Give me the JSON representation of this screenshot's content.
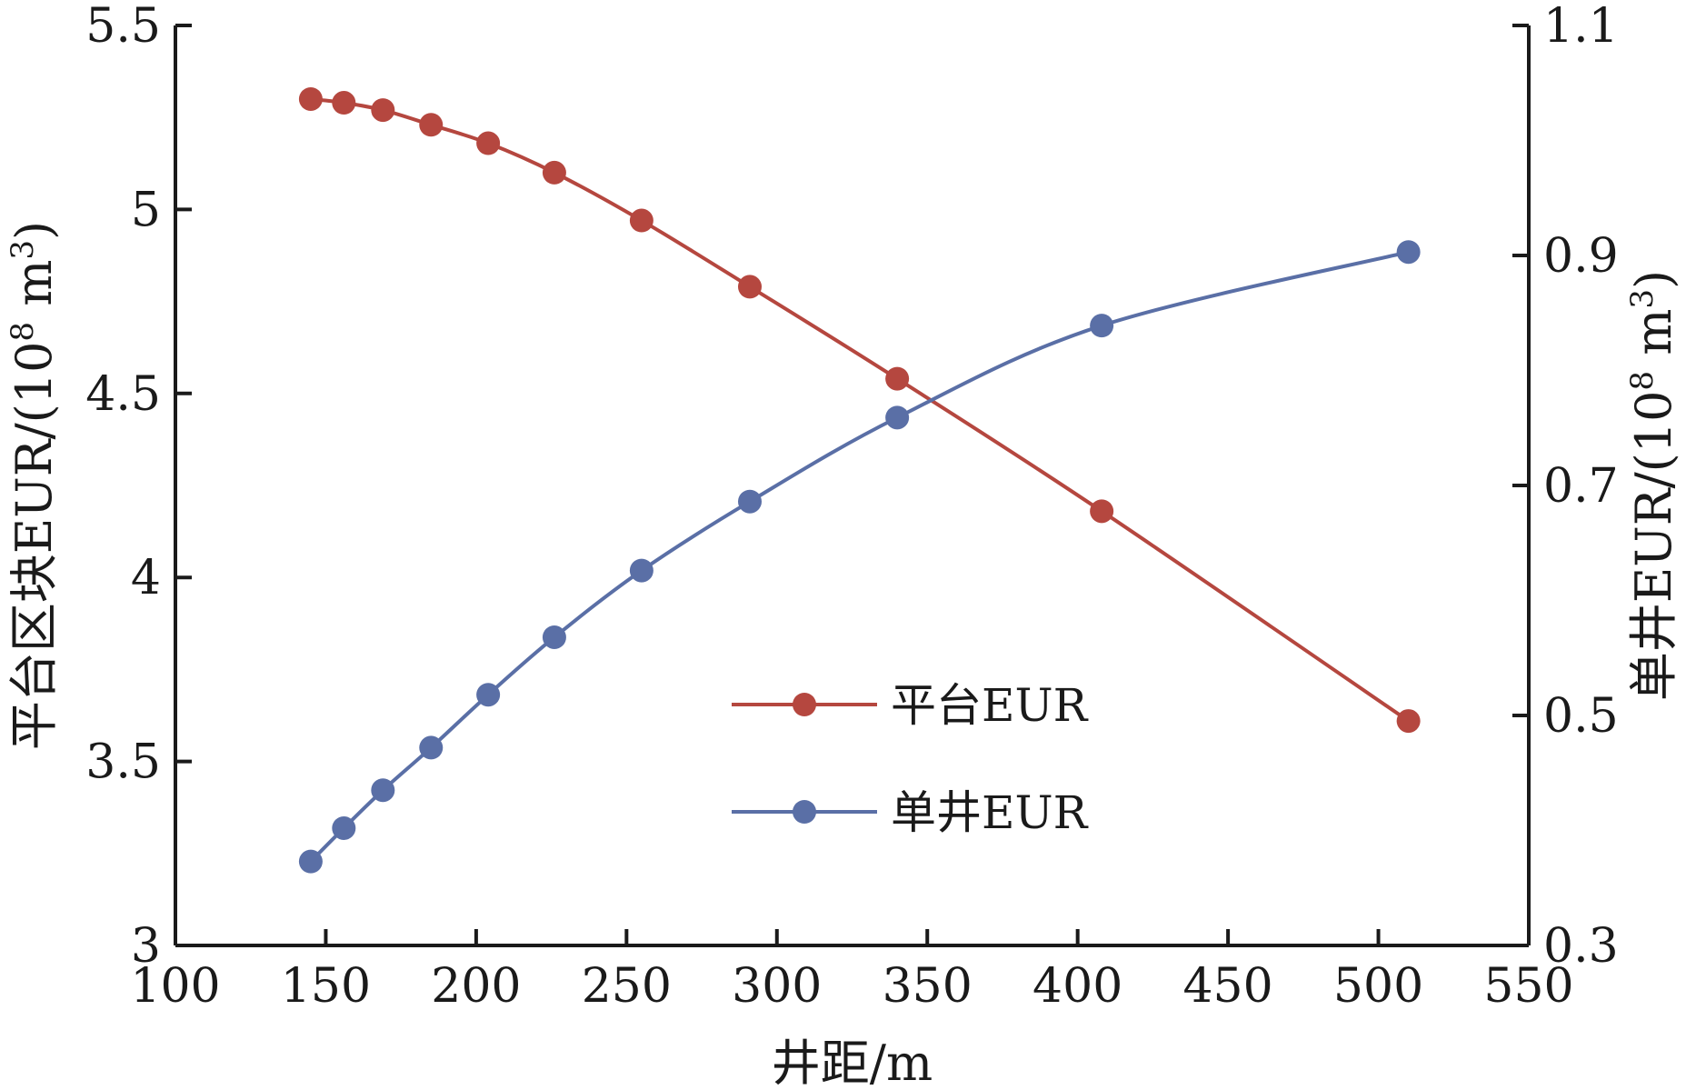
{
  "chart_data": {
    "type": "line",
    "x_axis": {
      "label": "井距/m",
      "range": [
        100,
        550
      ],
      "ticks": [
        100,
        150,
        200,
        250,
        300,
        350,
        400,
        450,
        500,
        550
      ],
      "tick_labels": [
        "100",
        "150",
        "200",
        "250",
        "300",
        "350",
        "400",
        "450",
        "500",
        "550"
      ]
    },
    "y_axis_left": {
      "label_main": "平台区块EUR/(10",
      "label_sup": "8",
      "label_tail": " m",
      "label_sup2": "3",
      "label_close": ")",
      "range": [
        3,
        5.5
      ],
      "ticks": [
        3,
        3.5,
        4,
        4.5,
        5,
        5.5
      ],
      "tick_labels": [
        "3",
        "3.5",
        "4",
        "4.5",
        "5",
        "5.5"
      ]
    },
    "y_axis_right": {
      "label_main": "单井EUR/(10",
      "label_sup": "8",
      "label_tail": " m",
      "label_sup2": "3",
      "label_close": ")",
      "range": [
        0.3,
        1.1
      ],
      "ticks": [
        0.3,
        0.5,
        0.7,
        0.9,
        1.1
      ],
      "tick_labels": [
        "0.3",
        "0.5",
        "0.7",
        "0.9",
        "1.1"
      ]
    },
    "series": [
      {
        "name": "平台EUR",
        "axis": "left",
        "color": "#b5473f",
        "x": [
          145,
          156,
          169,
          185,
          204,
          226,
          255,
          291,
          340,
          408,
          510
        ],
        "y": [
          5.3,
          5.29,
          5.27,
          5.23,
          5.18,
          5.1,
          4.97,
          4.79,
          4.54,
          4.18,
          3.61
        ]
      },
      {
        "name": "单井EUR",
        "axis": "right",
        "color": "#5a6fa6",
        "x": [
          145,
          156,
          169,
          185,
          204,
          226,
          255,
          291,
          340,
          408,
          510
        ],
        "y": [
          0.373,
          0.402,
          0.435,
          0.472,
          0.518,
          0.568,
          0.626,
          0.686,
          0.759,
          0.839,
          0.903
        ]
      }
    ],
    "legend_position": "center",
    "grid": false
  }
}
